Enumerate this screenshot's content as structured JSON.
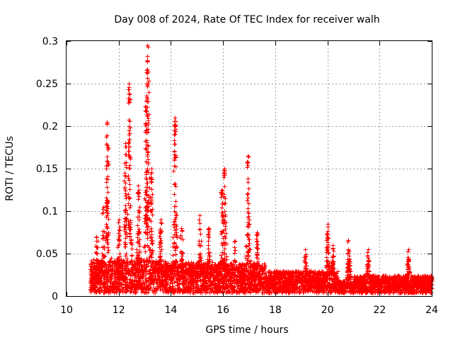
{
  "chart_data": {
    "type": "scatter",
    "title": "Day 008 of 2024, Rate Of TEC Index for receiver walh",
    "xlabel": "GPS time / hours",
    "ylabel": "ROTI / TECUs",
    "xlim": [
      10,
      24
    ],
    "ylim": [
      0,
      0.3
    ],
    "x_ticks": [
      10,
      12,
      14,
      16,
      18,
      20,
      22,
      24
    ],
    "x_tick_labels": [
      "10",
      "12",
      "14",
      "16",
      "18",
      "20",
      "22",
      "24"
    ],
    "y_ticks": [
      0,
      0.05,
      0.1,
      0.15,
      0.2,
      0.25,
      0.3
    ],
    "y_tick_labels": [
      "0",
      "0.05",
      "0.1",
      "0.15",
      "0.2",
      "0.25",
      "0.3"
    ],
    "grid": true,
    "marker": "+",
    "color": "#ff0000",
    "data_start_hour": 10.9,
    "data_end_hour": 24.0,
    "peaks": [
      {
        "x": 11.15,
        "y": 0.07
      },
      {
        "x": 11.4,
        "y": 0.105
      },
      {
        "x": 11.55,
        "y": 0.205
      },
      {
        "x": 12.0,
        "y": 0.09
      },
      {
        "x": 12.25,
        "y": 0.18
      },
      {
        "x": 12.4,
        "y": 0.25
      },
      {
        "x": 12.75,
        "y": 0.13
      },
      {
        "x": 13.05,
        "y": 0.23
      },
      {
        "x": 13.1,
        "y": 0.295
      },
      {
        "x": 13.25,
        "y": 0.15
      },
      {
        "x": 13.6,
        "y": 0.09
      },
      {
        "x": 14.15,
        "y": 0.21
      },
      {
        "x": 14.4,
        "y": 0.08
      },
      {
        "x": 15.1,
        "y": 0.095
      },
      {
        "x": 15.45,
        "y": 0.08
      },
      {
        "x": 15.95,
        "y": 0.125
      },
      {
        "x": 16.05,
        "y": 0.15
      },
      {
        "x": 16.45,
        "y": 0.065
      },
      {
        "x": 16.95,
        "y": 0.165
      },
      {
        "x": 17.3,
        "y": 0.075
      },
      {
        "x": 19.15,
        "y": 0.055
      },
      {
        "x": 20.0,
        "y": 0.085
      },
      {
        "x": 20.2,
        "y": 0.06
      },
      {
        "x": 20.8,
        "y": 0.066
      },
      {
        "x": 21.55,
        "y": 0.055
      },
      {
        "x": 23.1,
        "y": 0.055
      }
    ]
  }
}
